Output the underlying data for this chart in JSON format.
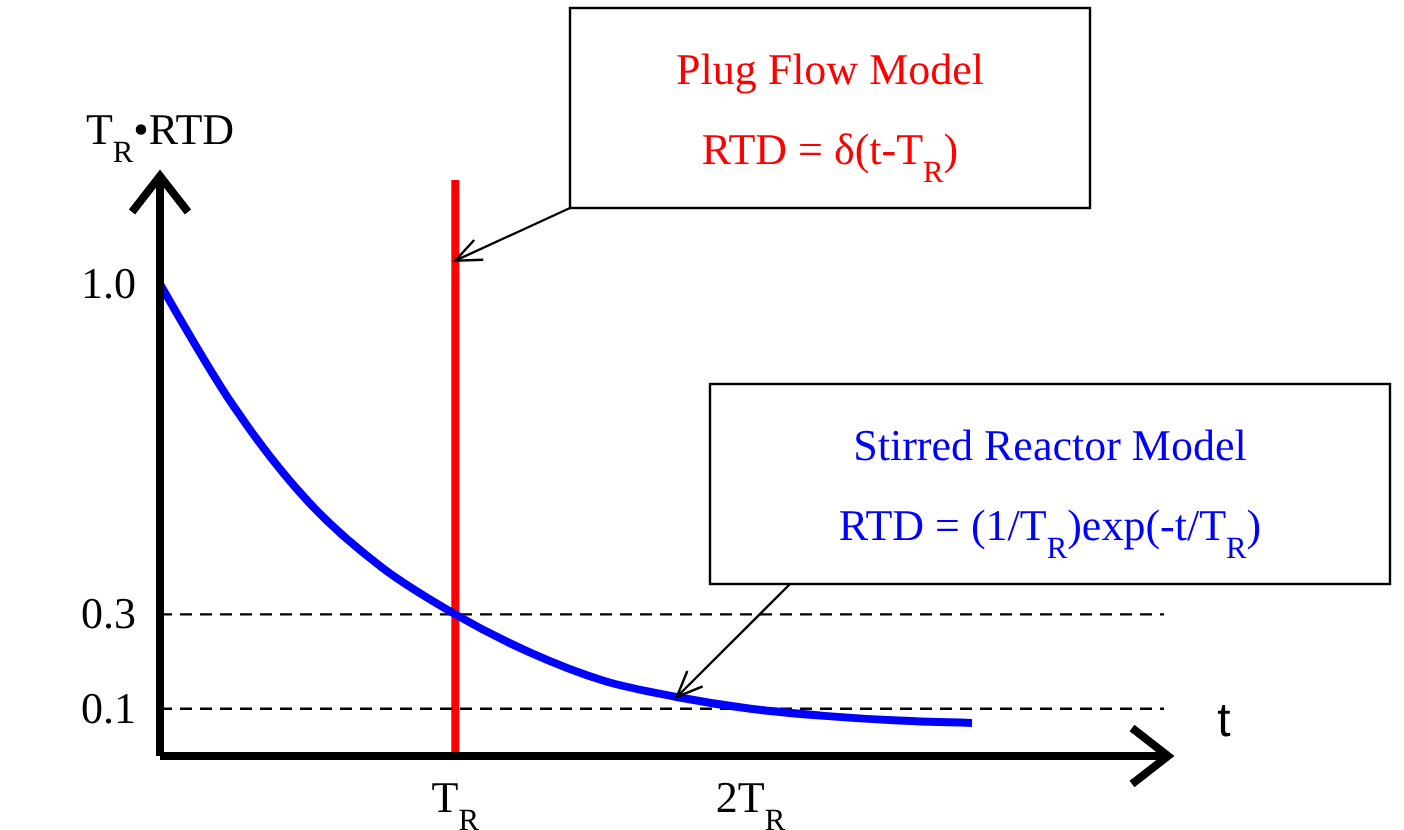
{
  "chart_data": {
    "type": "line",
    "ylabel": "T$_{R}$•RTD",
    "xlabel": "t",
    "categories": [
      null,
      null,
      null,
      null,
      "T$_{R}$",
      null,
      null,
      null,
      "2T$_{R}$",
      null,
      null,
      null,
      null,
      null
    ],
    "series": [
      {
        "color": "#0000ff",
        "values": [
          1.0,
          0.74,
          0.54,
          0.4,
          0.3,
          0.22,
          0.16,
          0.125,
          0.1,
          0.085,
          0.075,
          0.07,
          null,
          null
        ]
      }
    ],
    "ylim": [
      0,
      1.22
    ],
    "yticks": [
      0.1,
      0.3,
      {
        "value": 1,
        "label": "1.0"
      }
    ],
    "ref_lines": [
      {
        "axis": "x",
        "value": "T$_{R}$",
        "color": "#ff0000",
        "line_style": "solid"
      },
      {
        "axis": "y",
        "value": 0.3,
        "color": "#000000",
        "line_style": "dashed"
      },
      {
        "axis": "y",
        "value": 0.1,
        "color": "#000000",
        "line_style": "dashed"
      }
    ],
    "annotations": [
      "Plug Flow Model\nRTD = δ(t-T$_{R}$)",
      "Stirred Reactor Model\nRTD = (1/T$_{R}$)exp(-t/T$_{R}$)"
    ],
    "grid": false,
    "legend": false,
    "marker": "none",
    "line_style": "solid"
  }
}
